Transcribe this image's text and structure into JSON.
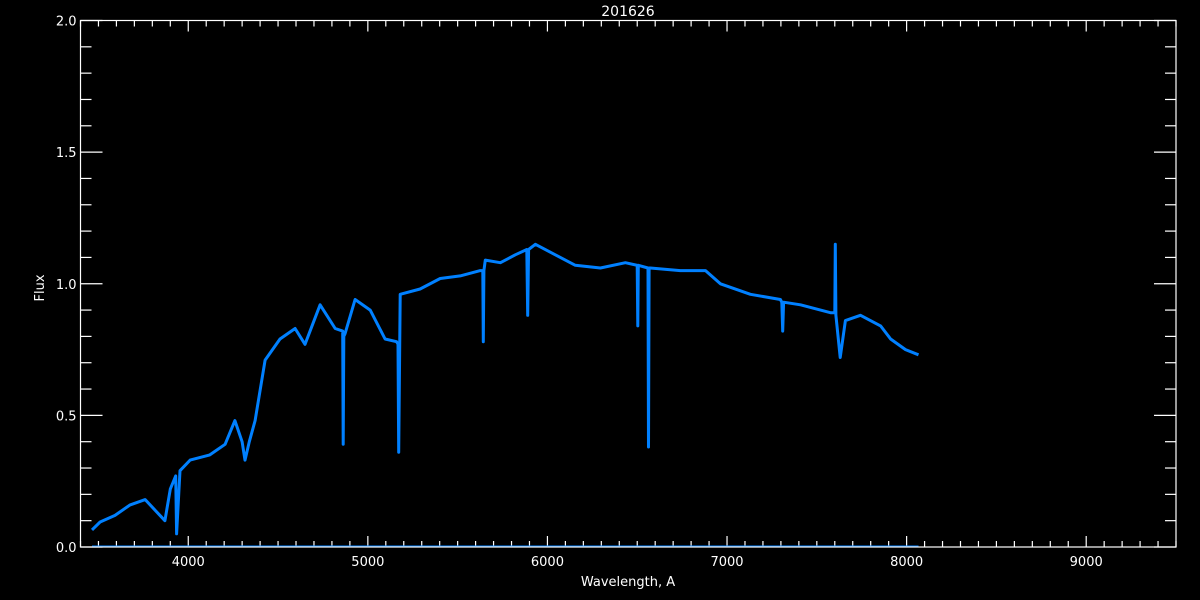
{
  "chart_data": {
    "type": "line",
    "title": "201626",
    "xlabel": "Wavelength, A",
    "ylabel": "Flux",
    "xlim": [
      3400,
      9500
    ],
    "ylim": [
      0,
      2.0
    ],
    "x_major_ticks": [
      4000,
      5000,
      6000,
      7000,
      8000,
      9000
    ],
    "x_tick_labels": [
      "4000",
      "5000",
      "6000",
      "7000",
      "8000",
      "9000"
    ],
    "x_minor_step": 100,
    "y_major_ticks": [
      0,
      0.5,
      1.0,
      1.5,
      2.0
    ],
    "y_tick_labels": [
      "0.0",
      "0.5",
      "1.0",
      "1.5",
      "2.0"
    ],
    "y_minor_step": 0.1,
    "grid": false,
    "background": "#000000",
    "axis_color": "#ffffff",
    "series": [
      {
        "color": "#0080ff",
        "x": [
          3464,
          3509,
          3592,
          3676,
          3760,
          3815,
          3870,
          3900,
          3930,
          3935,
          3954,
          4010,
          4120,
          4205,
          4260,
          4300,
          4316,
          4340,
          4372,
          4428,
          4511,
          4595,
          4650,
          4734,
          4818,
          4860,
          4863,
          4866,
          4873,
          4929,
          5013,
          5096,
          5160,
          5168,
          5172,
          5180,
          5291,
          5403,
          5514,
          5626,
          5640,
          5643,
          5646,
          5654,
          5738,
          5821,
          5885,
          5890,
          5895,
          5933,
          6044,
          6155,
          6295,
          6434,
          6500,
          6503,
          6506,
          6560,
          6563,
          6566,
          6573,
          6740,
          6880,
          6963,
          7130,
          7297,
          7305,
          7310,
          7315,
          7409,
          7576,
          7600,
          7603,
          7606,
          7630,
          7659,
          7743,
          7855,
          7911,
          7994,
          8066
        ],
        "y": [
          0.065,
          0.095,
          0.12,
          0.16,
          0.18,
          0.14,
          0.1,
          0.22,
          0.27,
          0.05,
          0.29,
          0.33,
          0.35,
          0.39,
          0.48,
          0.4,
          0.33,
          0.4,
          0.48,
          0.71,
          0.79,
          0.83,
          0.77,
          0.92,
          0.83,
          0.82,
          0.39,
          0.8,
          0.81,
          0.94,
          0.9,
          0.79,
          0.78,
          0.77,
          0.36,
          0.96,
          0.98,
          1.02,
          1.03,
          1.05,
          1.05,
          0.78,
          1.05,
          1.09,
          1.08,
          1.11,
          1.13,
          0.88,
          1.13,
          1.15,
          1.11,
          1.07,
          1.06,
          1.08,
          1.07,
          0.84,
          1.07,
          1.06,
          0.38,
          1.06,
          1.06,
          1.05,
          1.05,
          1.0,
          0.96,
          0.94,
          0.93,
          0.82,
          0.93,
          0.92,
          0.89,
          0.89,
          1.15,
          0.88,
          0.72,
          0.86,
          0.88,
          0.84,
          0.79,
          0.75,
          0.73
        ]
      },
      {
        "color": "#0080ff",
        "x": [
          3464,
          8066
        ],
        "y": [
          0.003,
          0.003
        ]
      }
    ]
  }
}
